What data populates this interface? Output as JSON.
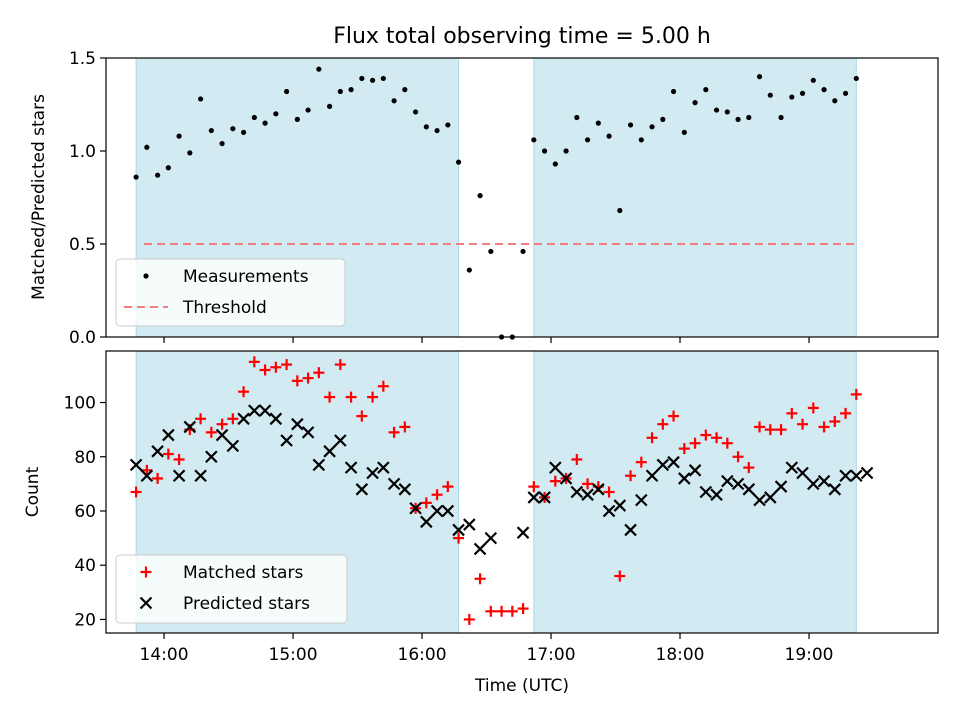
{
  "title": "Flux total observing time = 5.00 h",
  "chart_data": [
    {
      "type": "scatter",
      "ylabel": "Matched/Predicted stars",
      "xlim": [
        "13:33",
        "20:00"
      ],
      "ylim": [
        0,
        1.5
      ],
      "yticks": [
        "0.0",
        "0.5",
        "1.0",
        "1.5"
      ],
      "shaded_intervals": [
        [
          "13:47",
          "16:17"
        ],
        [
          "16:52",
          "19:22"
        ]
      ],
      "shade_color": "#add8e6",
      "threshold": {
        "value": 0.5,
        "color": "#f08080",
        "style": "dashed"
      },
      "legend": {
        "placement": "lower-left",
        "entries": [
          "Measurements",
          "Threshold"
        ]
      },
      "series": [
        {
          "name": "Measurements",
          "marker": "dot",
          "color": "#000000",
          "points": [
            [
              "13:47",
              0.86
            ],
            [
              "13:52",
              1.02
            ],
            [
              "13:57",
              0.87
            ],
            [
              "14:02",
              0.91
            ],
            [
              "14:07",
              1.08
            ],
            [
              "14:12",
              0.99
            ],
            [
              "14:17",
              1.28
            ],
            [
              "14:22",
              1.11
            ],
            [
              "14:27",
              1.04
            ],
            [
              "14:32",
              1.12
            ],
            [
              "14:37",
              1.1
            ],
            [
              "14:42",
              1.18
            ],
            [
              "14:47",
              1.15
            ],
            [
              "14:52",
              1.2
            ],
            [
              "14:57",
              1.32
            ],
            [
              "15:02",
              1.17
            ],
            [
              "15:07",
              1.22
            ],
            [
              "15:12",
              1.44
            ],
            [
              "15:17",
              1.24
            ],
            [
              "15:22",
              1.32
            ],
            [
              "15:27",
              1.33
            ],
            [
              "15:32",
              1.39
            ],
            [
              "15:37",
              1.38
            ],
            [
              "15:42",
              1.39
            ],
            [
              "15:47",
              1.27
            ],
            [
              "15:52",
              1.33
            ],
            [
              "15:57",
              1.21
            ],
            [
              "16:02",
              1.13
            ],
            [
              "16:07",
              1.11
            ],
            [
              "16:12",
              1.14
            ],
            [
              "16:17",
              0.94
            ],
            [
              "16:22",
              0.36
            ],
            [
              "16:27",
              0.76
            ],
            [
              "16:32",
              0.46
            ],
            [
              "16:37",
              0.0
            ],
            [
              "16:42",
              0.0
            ],
            [
              "16:47",
              0.46
            ],
            [
              "16:52",
              1.06
            ],
            [
              "16:57",
              1.0
            ],
            [
              "17:02",
              0.93
            ],
            [
              "17:07",
              1.0
            ],
            [
              "17:12",
              1.18
            ],
            [
              "17:17",
              1.06
            ],
            [
              "17:22",
              1.15
            ],
            [
              "17:27",
              1.08
            ],
            [
              "17:32",
              0.68
            ],
            [
              "17:37",
              1.14
            ],
            [
              "17:42",
              1.06
            ],
            [
              "17:47",
              1.13
            ],
            [
              "17:52",
              1.17
            ],
            [
              "17:57",
              1.32
            ],
            [
              "18:02",
              1.1
            ],
            [
              "18:07",
              1.26
            ],
            [
              "18:12",
              1.33
            ],
            [
              "18:17",
              1.22
            ],
            [
              "18:22",
              1.21
            ],
            [
              "18:27",
              1.17
            ],
            [
              "18:32",
              1.18
            ],
            [
              "18:37",
              1.4
            ],
            [
              "18:42",
              1.3
            ],
            [
              "18:47",
              1.18
            ],
            [
              "18:52",
              1.29
            ],
            [
              "18:57",
              1.31
            ],
            [
              "19:02",
              1.38
            ],
            [
              "19:07",
              1.33
            ],
            [
              "19:12",
              1.27
            ],
            [
              "19:17",
              1.31
            ],
            [
              "19:22",
              1.39
            ]
          ]
        }
      ]
    },
    {
      "type": "scatter",
      "xlabel": "Time (UTC)",
      "ylabel": "Count",
      "xlim": [
        "13:33",
        "20:00"
      ],
      "ylim": [
        15,
        119
      ],
      "yticks": [
        "20",
        "40",
        "60",
        "80",
        "100"
      ],
      "xticks": [
        "14:00",
        "15:00",
        "16:00",
        "17:00",
        "18:00",
        "19:00"
      ],
      "shaded_intervals": [
        [
          "13:47",
          "16:17"
        ],
        [
          "16:52",
          "19:22"
        ]
      ],
      "shade_color": "#add8e6",
      "legend": {
        "placement": "lower-left",
        "entries": [
          "Matched stars",
          "Predicted stars"
        ]
      },
      "series": [
        {
          "name": "Matched stars",
          "marker": "plus",
          "color": "#ff0000",
          "points": [
            [
              "13:47",
              67
            ],
            [
              "13:52",
              75
            ],
            [
              "13:57",
              72
            ],
            [
              "14:02",
              81
            ],
            [
              "14:07",
              79
            ],
            [
              "14:12",
              90
            ],
            [
              "14:17",
              94
            ],
            [
              "14:22",
              89
            ],
            [
              "14:27",
              92
            ],
            [
              "14:32",
              94
            ],
            [
              "14:37",
              104
            ],
            [
              "14:42",
              115
            ],
            [
              "14:47",
              112
            ],
            [
              "14:52",
              113
            ],
            [
              "14:57",
              114
            ],
            [
              "15:02",
              108
            ],
            [
              "15:07",
              109
            ],
            [
              "15:12",
              111
            ],
            [
              "15:17",
              102
            ],
            [
              "15:22",
              114
            ],
            [
              "15:27",
              102
            ],
            [
              "15:32",
              95
            ],
            [
              "15:37",
              102
            ],
            [
              "15:42",
              106
            ],
            [
              "15:47",
              89
            ],
            [
              "15:52",
              91
            ],
            [
              "15:57",
              61
            ],
            [
              "16:02",
              63
            ],
            [
              "16:07",
              66
            ],
            [
              "16:12",
              69
            ],
            [
              "16:17",
              50
            ],
            [
              "16:22",
              20
            ],
            [
              "16:27",
              35
            ],
            [
              "16:32",
              23
            ],
            [
              "16:37",
              23
            ],
            [
              "16:42",
              23
            ],
            [
              "16:47",
              24
            ],
            [
              "16:52",
              69
            ],
            [
              "16:57",
              65
            ],
            [
              "17:02",
              71
            ],
            [
              "17:07",
              72
            ],
            [
              "17:12",
              79
            ],
            [
              "17:17",
              70
            ],
            [
              "17:22",
              69
            ],
            [
              "17:27",
              67
            ],
            [
              "17:32",
              36
            ],
            [
              "17:37",
              73
            ],
            [
              "17:42",
              78
            ],
            [
              "17:47",
              87
            ],
            [
              "17:52",
              92
            ],
            [
              "17:57",
              95
            ],
            [
              "18:02",
              83
            ],
            [
              "18:07",
              85
            ],
            [
              "18:12",
              88
            ],
            [
              "18:17",
              87
            ],
            [
              "18:22",
              85
            ],
            [
              "18:27",
              80
            ],
            [
              "18:32",
              76
            ],
            [
              "18:37",
              91
            ],
            [
              "18:42",
              90
            ],
            [
              "18:47",
              90
            ],
            [
              "18:52",
              96
            ],
            [
              "18:57",
              92
            ],
            [
              "19:02",
              98
            ],
            [
              "19:07",
              91
            ],
            [
              "19:12",
              93
            ],
            [
              "19:17",
              96
            ],
            [
              "19:22",
              103
            ]
          ]
        },
        {
          "name": "Predicted stars",
          "marker": "x",
          "color": "#000000",
          "points": [
            [
              "13:47",
              77
            ],
            [
              "13:52",
              73
            ],
            [
              "13:57",
              82
            ],
            [
              "14:02",
              88
            ],
            [
              "14:07",
              73
            ],
            [
              "14:12",
              91
            ],
            [
              "14:17",
              73
            ],
            [
              "14:22",
              80
            ],
            [
              "14:27",
              88
            ],
            [
              "14:32",
              84
            ],
            [
              "14:37",
              94
            ],
            [
              "14:42",
              97
            ],
            [
              "14:47",
              97
            ],
            [
              "14:52",
              94
            ],
            [
              "14:57",
              86
            ],
            [
              "15:02",
              92
            ],
            [
              "15:07",
              89
            ],
            [
              "15:12",
              77
            ],
            [
              "15:17",
              82
            ],
            [
              "15:22",
              86
            ],
            [
              "15:27",
              76
            ],
            [
              "15:32",
              68
            ],
            [
              "15:37",
              74
            ],
            [
              "15:42",
              76
            ],
            [
              "15:47",
              70
            ],
            [
              "15:52",
              68
            ],
            [
              "15:57",
              61
            ],
            [
              "16:02",
              56
            ],
            [
              "16:07",
              60
            ],
            [
              "16:12",
              60
            ],
            [
              "16:17",
              53
            ],
            [
              "16:22",
              55
            ],
            [
              "16:27",
              46
            ],
            [
              "16:32",
              50
            ],
            [
              "16:47",
              52
            ],
            [
              "16:52",
              65
            ],
            [
              "16:57",
              65
            ],
            [
              "17:02",
              76
            ],
            [
              "17:07",
              72
            ],
            [
              "17:12",
              67
            ],
            [
              "17:17",
              66
            ],
            [
              "17:22",
              68
            ],
            [
              "17:27",
              60
            ],
            [
              "17:32",
              62
            ],
            [
              "17:37",
              53
            ],
            [
              "17:42",
              64
            ],
            [
              "17:47",
              73
            ],
            [
              "17:52",
              77
            ],
            [
              "17:57",
              78
            ],
            [
              "18:02",
              72
            ],
            [
              "18:07",
              75
            ],
            [
              "18:12",
              67
            ],
            [
              "18:17",
              66
            ],
            [
              "18:22",
              71
            ],
            [
              "18:27",
              70
            ],
            [
              "18:32",
              68
            ],
            [
              "18:37",
              64
            ],
            [
              "18:42",
              65
            ],
            [
              "18:47",
              69
            ],
            [
              "18:52",
              76
            ],
            [
              "18:57",
              74
            ],
            [
              "19:02",
              70
            ],
            [
              "19:07",
              71
            ],
            [
              "19:12",
              68
            ],
            [
              "19:17",
              73
            ],
            [
              "19:22",
              73
            ],
            [
              "19:27",
              74
            ]
          ]
        }
      ]
    }
  ]
}
